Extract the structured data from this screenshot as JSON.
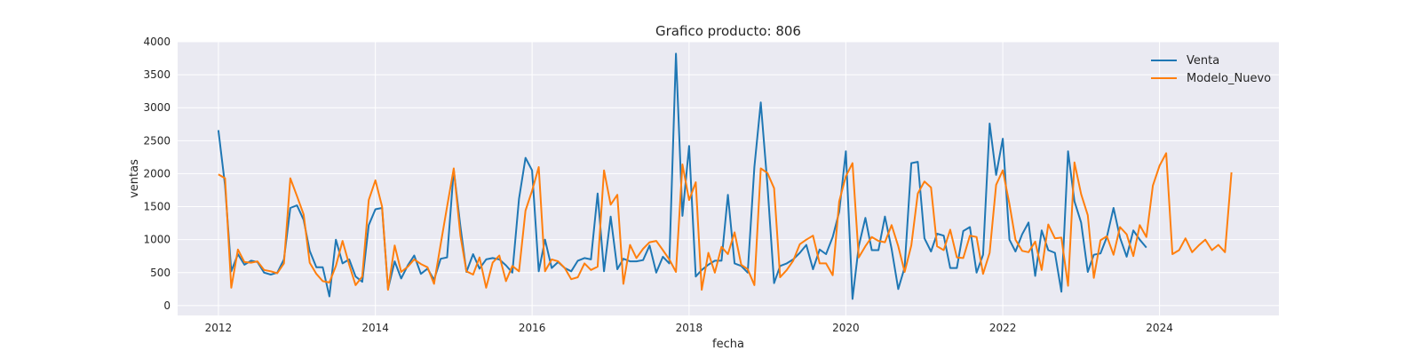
{
  "chart_data": {
    "type": "line",
    "title": "Grafico producto: 806",
    "xlabel": "fecha",
    "ylabel": "ventas",
    "xlim": [
      "2011-06-25",
      "2025-07-10"
    ],
    "ylim": [
      -150,
      4000
    ],
    "x_ticks": [
      "2012",
      "2014",
      "2016",
      "2018",
      "2020",
      "2022",
      "2024"
    ],
    "y_ticks": [
      0,
      500,
      1000,
      1500,
      2000,
      2500,
      3000,
      3500,
      4000
    ],
    "grid": true,
    "legend_position": "top-right",
    "series": [
      {
        "name": "Venta",
        "color": "#1f77b4",
        "start": "2012-01",
        "freq": "monthly",
        "values": [
          2660,
          1820,
          520,
          780,
          620,
          680,
          660,
          500,
          470,
          500,
          700,
          1480,
          1520,
          1300,
          830,
          580,
          580,
          140,
          1000,
          640,
          700,
          440,
          360,
          1220,
          1460,
          1480,
          250,
          670,
          410,
          610,
          760,
          480,
          560,
          390,
          710,
          730,
          2060,
          1200,
          510,
          780,
          560,
          700,
          720,
          700,
          610,
          500,
          1620,
          2240,
          2050,
          520,
          1000,
          570,
          660,
          570,
          520,
          680,
          720,
          700,
          1700,
          520,
          1350,
          550,
          710,
          670,
          670,
          690,
          910,
          500,
          740,
          640,
          3820,
          1360,
          2420,
          440,
          540,
          620,
          680,
          680,
          1680,
          640,
          600,
          500,
          2100,
          3080,
          1830,
          340,
          600,
          640,
          700,
          800,
          920,
          550,
          850,
          780,
          1040,
          1420,
          2340,
          100,
          900,
          1330,
          840,
          840,
          1350,
          860,
          250,
          580,
          2160,
          2180,
          1020,
          820,
          1090,
          1060,
          570,
          570,
          1130,
          1190,
          500,
          770,
          2760,
          1980,
          2530,
          1000,
          820,
          1080,
          1260,
          450,
          1140,
          840,
          800,
          210,
          2340,
          1580,
          1260,
          510,
          770,
          790,
          1040,
          1480,
          1030,
          740,
          1140,
          1000,
          880
        ]
      },
      {
        "name": "Modelo_Nuevo",
        "color": "#ff7f0e",
        "start": "2012-01",
        "freq": "monthly",
        "values": [
          1990,
          1930,
          270,
          850,
          660,
          650,
          670,
          540,
          520,
          490,
          640,
          1930,
          1660,
          1380,
          650,
          480,
          370,
          350,
          600,
          980,
          620,
          310,
          440,
          1600,
          1900,
          1500,
          240,
          910,
          510,
          590,
          700,
          630,
          580,
          330,
          930,
          1500,
          2080,
          1060,
          520,
          470,
          730,
          270,
          650,
          760,
          370,
          600,
          520,
          1440,
          1740,
          2100,
          520,
          700,
          670,
          570,
          400,
          430,
          640,
          540,
          590,
          2050,
          1530,
          1680,
          330,
          920,
          720,
          860,
          960,
          980,
          840,
          700,
          510,
          2140,
          1600,
          1870,
          240,
          800,
          500,
          890,
          780,
          1110,
          620,
          550,
          310,
          2080,
          2010,
          1780,
          430,
          540,
          680,
          930,
          1000,
          1060,
          640,
          640,
          460,
          1580,
          1960,
          2160,
          730,
          900,
          1040,
          980,
          960,
          1220,
          900,
          510,
          910,
          1700,
          1880,
          1790,
          900,
          840,
          1150,
          730,
          720,
          1060,
          1040,
          480,
          800,
          1830,
          2050,
          1540,
          1000,
          830,
          810,
          970,
          540,
          1230,
          1020,
          1030,
          300,
          2170,
          1690,
          1370,
          420,
          990,
          1050,
          770,
          1190,
          1080,
          750,
          1220,
          1040,
          1820,
          2120,
          2310,
          780,
          840,
          1020,
          810,
          910,
          1000,
          840,
          920,
          810,
          2020
        ]
      }
    ]
  }
}
